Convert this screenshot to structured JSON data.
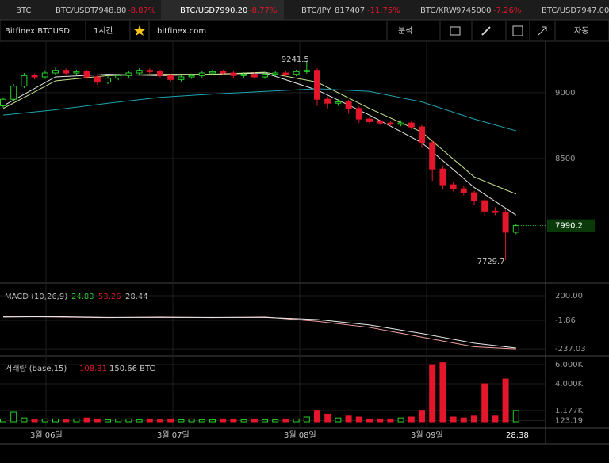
{
  "tickers": [
    {
      "symbol": "BTC"
    },
    {
      "symbol": "BTC/USDT",
      "price": "7948.80",
      "change": "-8.87%"
    },
    {
      "symbol": "BTC/USD",
      "price": "7990.20",
      "change": "-8.77%"
    },
    {
      "symbol": "BTC/JPY",
      "price": "817407",
      "change": "-11.75%"
    },
    {
      "symbol": "BTC/KRW",
      "price": "9745000",
      "change": "-7.26%"
    },
    {
      "symbol": "BTC/USD",
      "price": "7947.00"
    }
  ],
  "toolbar": {
    "symbol": "Bitfinex BTCUSD",
    "interval": "1시간",
    "site": "bitfinex.com",
    "analysis": "분석",
    "auto": "자동"
  },
  "chart": {
    "ylim": [
      7566,
      9391
    ],
    "yticks": [
      9000,
      8500
    ],
    "candles": [
      [
        8900,
        8965,
        8885,
        8950
      ],
      [
        8950,
        9065,
        8935,
        9050
      ],
      [
        9050,
        9150,
        9035,
        9130
      ],
      [
        9130,
        9145,
        9100,
        9120
      ],
      [
        9120,
        9170,
        9105,
        9150
      ],
      [
        9150,
        9190,
        9135,
        9170
      ],
      [
        9170,
        9185,
        9135,
        9150
      ],
      [
        9150,
        9175,
        9135,
        9160
      ],
      [
        9160,
        9175,
        9105,
        9120
      ],
      [
        9120,
        9135,
        9060,
        9080
      ],
      [
        9080,
        9125,
        9065,
        9110
      ],
      [
        9110,
        9145,
        9095,
        9130
      ],
      [
        9130,
        9165,
        9115,
        9150
      ],
      [
        9150,
        9185,
        9135,
        9170
      ],
      [
        9170,
        9185,
        9145,
        9160
      ],
      [
        9160,
        9175,
        9115,
        9130
      ],
      [
        9130,
        9145,
        9085,
        9100
      ],
      [
        9100,
        9135,
        9085,
        9120
      ],
      [
        9120,
        9145,
        9105,
        9130
      ],
      [
        9130,
        9165,
        9115,
        9150
      ],
      [
        9150,
        9175,
        9135,
        9160
      ],
      [
        9160,
        9175,
        9135,
        9150
      ],
      [
        9150,
        9165,
        9115,
        9130
      ],
      [
        9130,
        9155,
        9115,
        9140
      ],
      [
        9140,
        9155,
        9105,
        9120
      ],
      [
        9120,
        9155,
        9105,
        9140
      ],
      [
        9140,
        9165,
        9125,
        9150
      ],
      [
        9150,
        9165,
        9125,
        9140
      ],
      [
        9140,
        9175,
        9125,
        9160
      ],
      [
        9160,
        9241.5,
        9145,
        9170
      ],
      [
        9170,
        9185,
        8900,
        8950
      ],
      [
        8950,
        8970,
        8880,
        8920
      ],
      [
        8920,
        8950,
        8900,
        8930
      ],
      [
        8930,
        8945,
        8840,
        8880
      ],
      [
        8880,
        8895,
        8770,
        8800
      ],
      [
        8800,
        8815,
        8760,
        8780
      ],
      [
        8780,
        8795,
        8755,
        8770
      ],
      [
        8770,
        8785,
        8745,
        8760
      ],
      [
        8760,
        8790,
        8745,
        8770
      ],
      [
        8770,
        8785,
        8720,
        8740
      ],
      [
        8740,
        8755,
        8580,
        8620
      ],
      [
        8620,
        8635,
        8330,
        8420
      ],
      [
        8420,
        8440,
        8270,
        8300
      ],
      [
        8300,
        8320,
        8250,
        8270
      ],
      [
        8270,
        8290,
        8220,
        8240
      ],
      [
        8240,
        8255,
        8150,
        8180
      ],
      [
        8180,
        8195,
        8060,
        8100
      ],
      [
        8100,
        8130,
        8070,
        8090
      ],
      [
        8090,
        8110,
        7729.7,
        7940
      ],
      [
        7940,
        8005,
        7925,
        7990.2
      ]
    ],
    "ma_x": [
      0,
      5,
      10,
      15,
      20,
      25,
      30,
      35,
      40,
      45,
      49
    ],
    "ma": [
      {
        "color": "#e8e8e8",
        "values": [
          8900,
          9120,
          9140,
          9130,
          9140,
          9150,
          9020,
          8830,
          8620,
          8280,
          8070
        ]
      },
      {
        "color": "#c8e68c",
        "values": [
          8880,
          9090,
          9130,
          9140,
          9140,
          9155,
          9080,
          8880,
          8700,
          8360,
          8230
        ]
      },
      {
        "color": "#1fa3b0",
        "values": [
          8830,
          8870,
          8920,
          8965,
          8990,
          9010,
          9030,
          9010,
          8930,
          8800,
          8710
        ]
      }
    ]
  },
  "macd": {
    "label": "MACD (10,26,9)",
    "legend": [
      24.83,
      53.26,
      28.44
    ],
    "ylim": [
      -282,
      272
    ],
    "yticks": [
      {
        "value": 200,
        "label": "200.00"
      },
      -1.86,
      -237.03
    ],
    "x": [
      0,
      5,
      10,
      15,
      20,
      25,
      30,
      35,
      40,
      45,
      49
    ],
    "series": [
      {
        "color": "#f0a0a0",
        "values": [
          30,
          25,
          20,
          25,
          20,
          25,
          -10,
          -60,
          -140,
          -220,
          -237.03
        ]
      },
      {
        "color": "#e8e8e8",
        "values": [
          25,
          28,
          22,
          22,
          22,
          22,
          5,
          -40,
          -110,
          -190,
          -230
        ]
      }
    ]
  },
  "volume": {
    "label": "거래량 (base,15)",
    "legend": [
      108.31,
      "150.66 BTC"
    ],
    "ylim": [
      0,
      6.67
    ],
    "yticks": [
      {
        "value": 6,
        "label": "6.000K"
      },
      {
        "value": 4,
        "label": "4.000K"
      },
      {
        "value": 1.177,
        "label": "1.177K"
      },
      {
        "value": 0.12319,
        "label": "123.19"
      }
    ],
    "values": [
      0.3,
      1.0,
      0.4,
      0.2,
      0.3,
      0.3,
      0.2,
      0.3,
      0.4,
      0.3,
      0.2,
      0.3,
      0.3,
      0.2,
      0.3,
      0.2,
      0.3,
      0.2,
      0.3,
      0.2,
      0.2,
      0.3,
      0.3,
      0.2,
      0.3,
      0.2,
      0.2,
      0.3,
      0.3,
      0.5,
      1.2,
      0.8,
      0.4,
      0.6,
      0.5,
      0.3,
      0.3,
      0.3,
      0.4,
      0.5,
      1.2,
      6.0,
      6.2,
      0.5,
      0.4,
      0.6,
      4.0,
      0.6,
      4.5,
      1.177
    ]
  },
  "dates": [
    "3월 06일",
    "3월 07일",
    "3월 08일",
    "3월 09일",
    "28:38"
  ]
}
